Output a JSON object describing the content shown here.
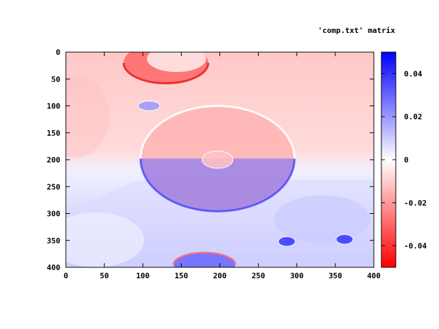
{
  "chart_data": {
    "type": "heatmap",
    "title": "",
    "legend_label": "'comp.txt' matrix",
    "xlabel": "",
    "ylabel": "",
    "xlim": [
      0,
      400
    ],
    "ylim": [
      400,
      0
    ],
    "x_ticks": [
      "0",
      "50",
      "100",
      "150",
      "200",
      "250",
      "300",
      "350",
      "400"
    ],
    "y_ticks": [
      "0",
      "50",
      "100",
      "150",
      "200",
      "250",
      "300",
      "350",
      "400"
    ],
    "colorbar": {
      "range": [
        -0.05,
        0.05
      ],
      "ticks": [
        {
          "value": 0.04,
          "label": "0.04"
        },
        {
          "value": 0.02,
          "label": "0.02"
        },
        {
          "value": 0,
          "label": "0"
        },
        {
          "value": -0.02,
          "label": "-0.02"
        },
        {
          "value": -0.04,
          "label": "-0.04"
        }
      ],
      "colors": {
        "negative": "#ff0000",
        "zero": "#ffffff",
        "positive": "#0000ff"
      }
    },
    "features": [
      {
        "name": "upper-left-bubble",
        "cx": 130,
        "cy": 20,
        "rx": 55,
        "ry": 38,
        "value": -0.03
      },
      {
        "name": "small-blue-spot",
        "cx": 108,
        "cy": 100,
        "rx": 14,
        "ry": 9,
        "value": 0.02
      },
      {
        "name": "central-ellipse",
        "cx": 197,
        "cy": 198,
        "rx": 100,
        "ry": 98,
        "value": -0.015
      },
      {
        "name": "central-spot",
        "cx": 197,
        "cy": 200,
        "rx": 20,
        "ry": 16,
        "value": -0.012
      },
      {
        "name": "right-blue-spot-1",
        "cx": 287,
        "cy": 352,
        "rx": 11,
        "ry": 9,
        "value": 0.04
      },
      {
        "name": "right-blue-spot-2",
        "cx": 362,
        "cy": 348,
        "rx": 11,
        "ry": 9,
        "value": 0.04
      },
      {
        "name": "bottom-bubble",
        "cx": 180,
        "cy": 395,
        "rx": 40,
        "ry": 22,
        "value": 0.03
      }
    ]
  }
}
